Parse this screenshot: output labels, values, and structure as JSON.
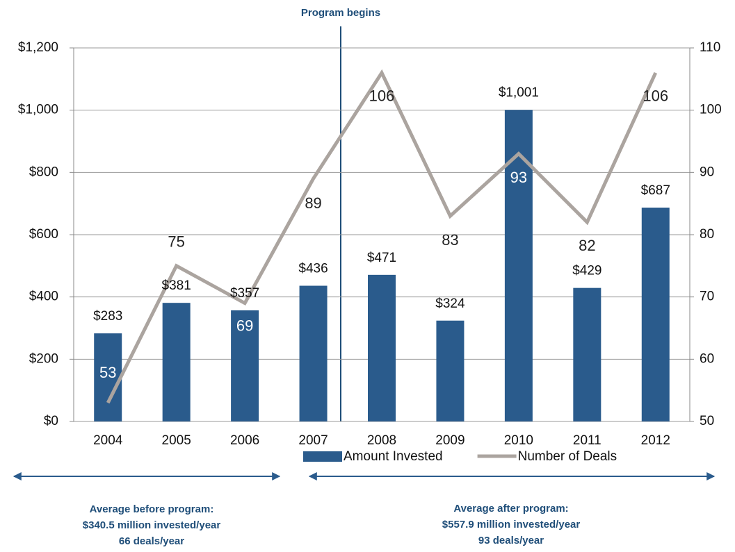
{
  "chart_data": {
    "type": "bar_line",
    "categories": [
      "2004",
      "2005",
      "2006",
      "2007",
      "2008",
      "2009",
      "2010",
      "2011",
      "2012"
    ],
    "series": [
      {
        "name": "Amount Invested",
        "type": "bar",
        "color": "#2a5b8c",
        "values": [
          283,
          381,
          357,
          436,
          471,
          324,
          1001,
          429,
          687
        ],
        "value_labels": [
          "$283",
          "$381",
          "$357",
          "$436",
          "$471",
          "$324",
          "$1,001",
          "$429",
          "$687"
        ]
      },
      {
        "name": "Number of Deals",
        "type": "line",
        "axis": "y2",
        "color": "#aba49f",
        "values": [
          53,
          75,
          69,
          89,
          106,
          83,
          93,
          82,
          106
        ]
      }
    ],
    "ylim": [
      0,
      1200
    ],
    "yticks": [
      {
        "value": 0,
        "label": "$0"
      },
      {
        "value": 200,
        "label": "$200"
      },
      {
        "value": 400,
        "label": "$400"
      },
      {
        "value": 600,
        "label": "$600"
      },
      {
        "value": 800,
        "label": "$800"
      },
      {
        "value": 1000,
        "label": "$1,000"
      },
      {
        "value": 1200,
        "label": "$1,200"
      }
    ],
    "y2lim": [
      50,
      110
    ],
    "y2ticks": [
      50,
      60,
      70,
      80,
      90,
      100,
      110
    ],
    "grid": true,
    "legend": "bottom",
    "annotations": {
      "program": "Program begins",
      "before": [
        "Average before program:",
        "$340.5 million invested/year",
        "66 deals/year"
      ],
      "after": [
        "Average after program:",
        "$557.9 million invested/year",
        "93 deals/year"
      ]
    }
  }
}
